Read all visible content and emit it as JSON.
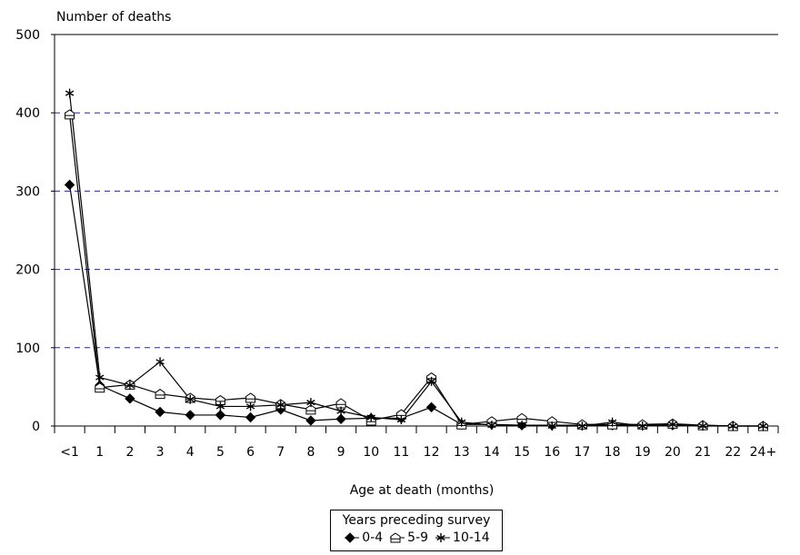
{
  "chart_data": {
    "type": "line",
    "ylabel": "Number of deaths",
    "xlabel": "Age at death (months)",
    "categories": [
      "<1",
      "1",
      "2",
      "3",
      "4",
      "5",
      "6",
      "7",
      "8",
      "9",
      "10",
      "11",
      "12",
      "13",
      "14",
      "15",
      "16",
      "17",
      "18",
      "19",
      "20",
      "21",
      "22",
      "24+"
    ],
    "ylim": [
      0,
      500
    ],
    "yticks": [
      0,
      100,
      200,
      300,
      400,
      500
    ],
    "grid": "dashed horizontal",
    "legend": {
      "title": "Years preceding survey",
      "placement": "bottom-center"
    },
    "series": [
      {
        "name": "0-4",
        "marker": "diamond-filled",
        "values": [
          308,
          52,
          35,
          18,
          14,
          14,
          11,
          21,
          7,
          9,
          10,
          10,
          24,
          2,
          2,
          1,
          1,
          1,
          1,
          1,
          1,
          1,
          0,
          0
        ]
      },
      {
        "name": "5-9",
        "marker": "house-open",
        "values": [
          398,
          49,
          53,
          41,
          36,
          33,
          36,
          28,
          21,
          29,
          7,
          15,
          62,
          2,
          6,
          10,
          6,
          2,
          2,
          2,
          3,
          1,
          0,
          0
        ]
      },
      {
        "name": "10-14",
        "marker": "asterisk",
        "values": [
          425,
          62,
          52,
          82,
          34,
          25,
          25,
          27,
          30,
          19,
          11,
          8,
          57,
          5,
          1,
          1,
          0,
          0,
          5,
          0,
          2,
          0,
          0,
          0
        ]
      }
    ]
  }
}
